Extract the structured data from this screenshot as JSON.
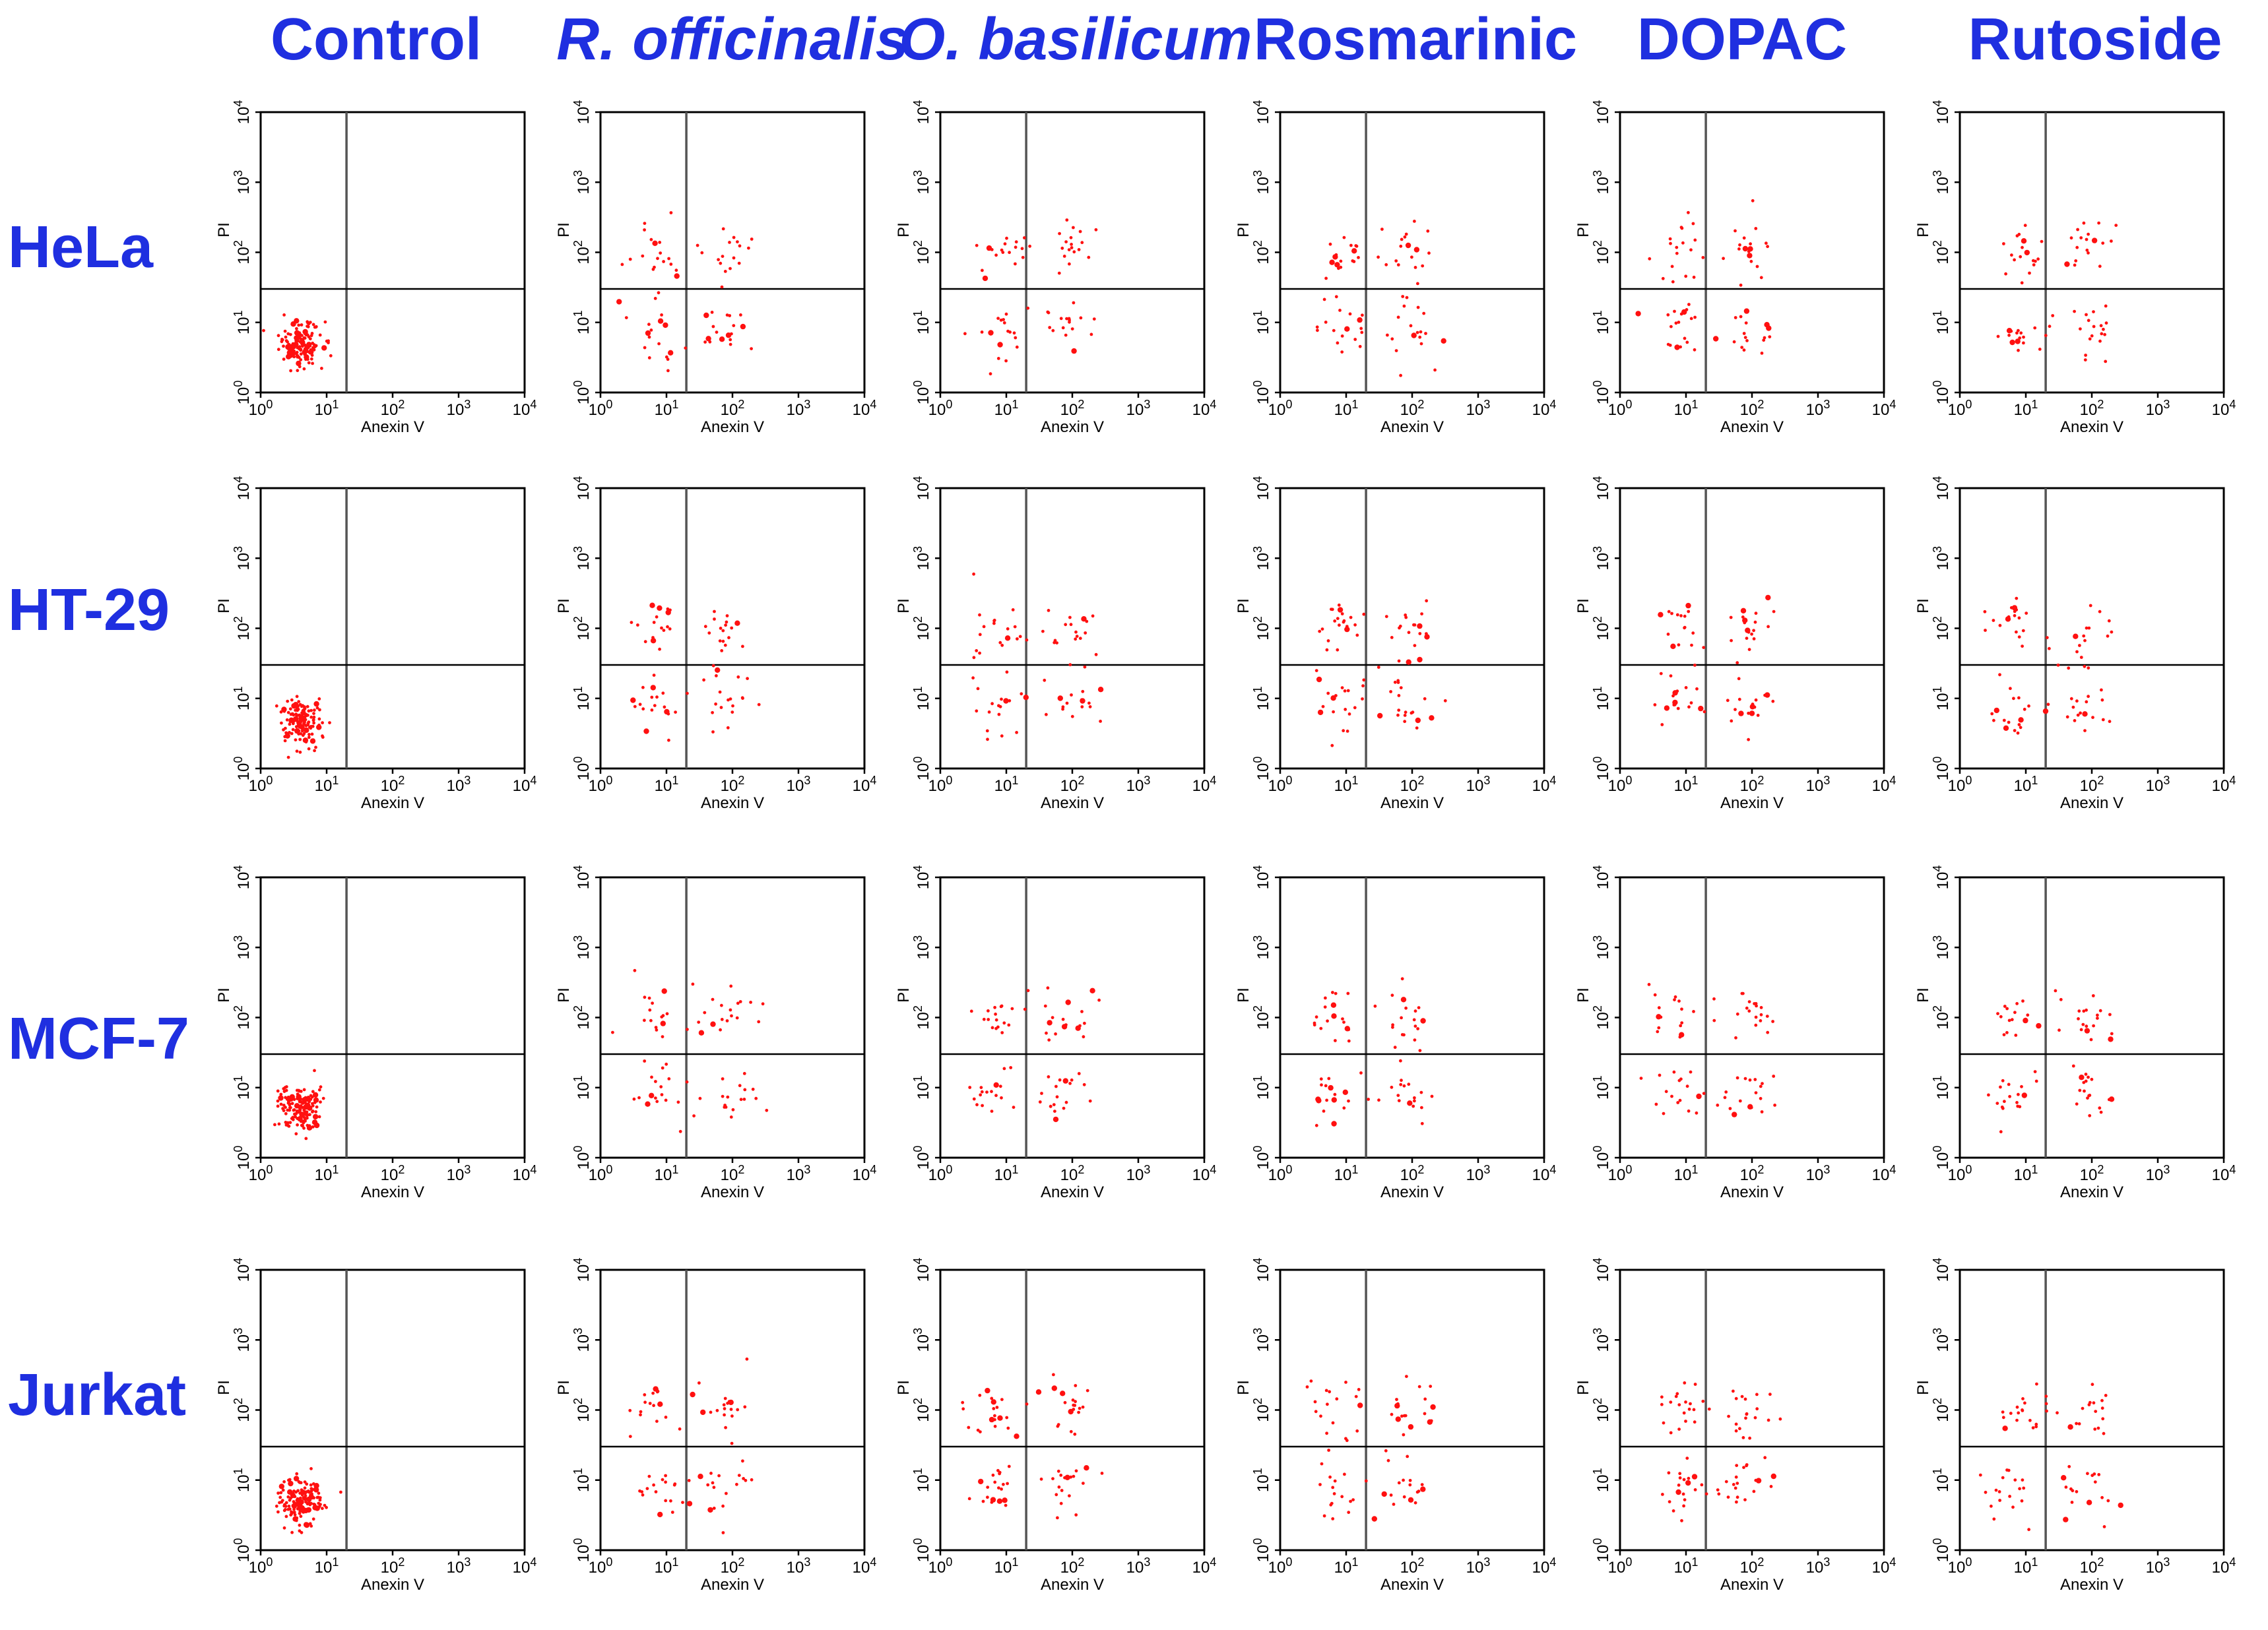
{
  "chart_data": {
    "type": "scatter",
    "description_title": "",
    "column_labels": [
      {
        "text": "Control",
        "italic": false
      },
      {
        "text": "R. officinalis",
        "italic": true
      },
      {
        "text": "O. basilicum",
        "italic": true
      },
      {
        "text": "Rosmarinic",
        "italic": false
      },
      {
        "text": "DOPAC",
        "italic": false
      },
      {
        "text": "Rutoside",
        "italic": false
      }
    ],
    "row_labels": [
      "HeLa",
      "HT-29",
      "MCF-7",
      "Jurkat"
    ],
    "xlabel": "Anexin V",
    "ylabel": "PI",
    "x_scale": "log",
    "y_scale": "log",
    "xlim": [
      1,
      10000
    ],
    "ylim": [
      1,
      10000
    ],
    "tick_values": [
      1,
      10,
      100,
      1000,
      10000
    ],
    "tick_base": "10",
    "tick_exponents": [
      "0",
      "1",
      "2",
      "3",
      "4"
    ],
    "quadrant_gate": {
      "x": 20,
      "y": 30
    },
    "point_color": "#ff1010",
    "label_color": "#1f2fe0",
    "panels": [
      {
        "row": "HeLa",
        "treatment": "Control",
        "clusters": [
          {
            "x": 4,
            "y": 5,
            "sx": 0.16,
            "sy": 0.16,
            "n": 150
          }
        ]
      },
      {
        "row": "HeLa",
        "treatment": "R. officinalis",
        "clusters": [
          {
            "x": 7,
            "y": 7,
            "sx": 0.22,
            "sy": 0.22,
            "n": 18
          },
          {
            "x": 7,
            "y": 90,
            "sx": 0.22,
            "sy": 0.22,
            "n": 18
          },
          {
            "x": 80,
            "y": 8,
            "sx": 0.22,
            "sy": 0.22,
            "n": 18
          },
          {
            "x": 80,
            "y": 100,
            "sx": 0.22,
            "sy": 0.22,
            "n": 18
          }
        ]
      },
      {
        "row": "HeLa",
        "treatment": "O. basilicum",
        "clusters": [
          {
            "x": 7,
            "y": 7,
            "sx": 0.22,
            "sy": 0.22,
            "n": 18
          },
          {
            "x": 7,
            "y": 100,
            "sx": 0.22,
            "sy": 0.22,
            "n": 18
          },
          {
            "x": 80,
            "y": 8,
            "sx": 0.22,
            "sy": 0.22,
            "n": 18
          },
          {
            "x": 100,
            "y": 110,
            "sx": 0.22,
            "sy": 0.22,
            "n": 18
          }
        ]
      },
      {
        "row": "HeLa",
        "treatment": "Rosmarinic",
        "clusters": [
          {
            "x": 8,
            "y": 8,
            "sx": 0.22,
            "sy": 0.22,
            "n": 18
          },
          {
            "x": 8,
            "y": 90,
            "sx": 0.22,
            "sy": 0.22,
            "n": 18
          },
          {
            "x": 90,
            "y": 8,
            "sx": 0.22,
            "sy": 0.22,
            "n": 18
          },
          {
            "x": 90,
            "y": 110,
            "sx": 0.22,
            "sy": 0.22,
            "n": 18
          }
        ]
      },
      {
        "row": "HeLa",
        "treatment": "DOPAC",
        "clusters": [
          {
            "x": 8,
            "y": 8,
            "sx": 0.22,
            "sy": 0.22,
            "n": 18
          },
          {
            "x": 8,
            "y": 110,
            "sx": 0.22,
            "sy": 0.22,
            "n": 18
          },
          {
            "x": 80,
            "y": 8,
            "sx": 0.22,
            "sy": 0.22,
            "n": 18
          },
          {
            "x": 90,
            "y": 110,
            "sx": 0.22,
            "sy": 0.22,
            "n": 18
          }
        ]
      },
      {
        "row": "HeLa",
        "treatment": "Rutoside",
        "clusters": [
          {
            "x": 7,
            "y": 7,
            "sx": 0.22,
            "sy": 0.22,
            "n": 18
          },
          {
            "x": 8,
            "y": 90,
            "sx": 0.22,
            "sy": 0.22,
            "n": 18
          },
          {
            "x": 90,
            "y": 8,
            "sx": 0.22,
            "sy": 0.22,
            "n": 18
          },
          {
            "x": 100,
            "y": 110,
            "sx": 0.22,
            "sy": 0.22,
            "n": 18
          }
        ]
      },
      {
        "row": "HT-29",
        "treatment": "Control",
        "clusters": [
          {
            "x": 4,
            "y": 5,
            "sx": 0.16,
            "sy": 0.16,
            "n": 150
          }
        ]
      },
      {
        "row": "HT-29",
        "treatment": "R. officinalis",
        "clusters": [
          {
            "x": 7,
            "y": 7,
            "sx": 0.22,
            "sy": 0.22,
            "n": 18
          },
          {
            "x": 7,
            "y": 110,
            "sx": 0.22,
            "sy": 0.22,
            "n": 18
          },
          {
            "x": 80,
            "y": 8,
            "sx": 0.22,
            "sy": 0.22,
            "n": 18
          },
          {
            "x": 90,
            "y": 100,
            "sx": 0.22,
            "sy": 0.22,
            "n": 18
          }
        ]
      },
      {
        "row": "HT-29",
        "treatment": "O. basilicum",
        "clusters": [
          {
            "x": 7,
            "y": 8,
            "sx": 0.22,
            "sy": 0.22,
            "n": 18
          },
          {
            "x": 7,
            "y": 100,
            "sx": 0.22,
            "sy": 0.22,
            "n": 18
          },
          {
            "x": 90,
            "y": 8,
            "sx": 0.22,
            "sy": 0.22,
            "n": 18
          },
          {
            "x": 100,
            "y": 100,
            "sx": 0.22,
            "sy": 0.22,
            "n": 18
          }
        ]
      },
      {
        "row": "HT-29",
        "treatment": "Rosmarinic",
        "clusters": [
          {
            "x": 8,
            "y": 8,
            "sx": 0.22,
            "sy": 0.22,
            "n": 20
          },
          {
            "x": 8,
            "y": 100,
            "sx": 0.22,
            "sy": 0.22,
            "n": 20
          },
          {
            "x": 90,
            "y": 8,
            "sx": 0.22,
            "sy": 0.22,
            "n": 20
          },
          {
            "x": 100,
            "y": 100,
            "sx": 0.22,
            "sy": 0.22,
            "n": 20
          }
        ]
      },
      {
        "row": "HT-29",
        "treatment": "DOPAC",
        "clusters": [
          {
            "x": 8,
            "y": 8,
            "sx": 0.22,
            "sy": 0.22,
            "n": 18
          },
          {
            "x": 8,
            "y": 100,
            "sx": 0.22,
            "sy": 0.22,
            "n": 18
          },
          {
            "x": 80,
            "y": 8,
            "sx": 0.22,
            "sy": 0.22,
            "n": 18
          },
          {
            "x": 100,
            "y": 100,
            "sx": 0.22,
            "sy": 0.22,
            "n": 18
          }
        ]
      },
      {
        "row": "HT-29",
        "treatment": "Rutoside",
        "clusters": [
          {
            "x": 7,
            "y": 7,
            "sx": 0.22,
            "sy": 0.22,
            "n": 18
          },
          {
            "x": 8,
            "y": 110,
            "sx": 0.22,
            "sy": 0.22,
            "n": 18
          },
          {
            "x": 80,
            "y": 8,
            "sx": 0.22,
            "sy": 0.22,
            "n": 18
          },
          {
            "x": 80,
            "y": 100,
            "sx": 0.22,
            "sy": 0.22,
            "n": 18
          }
        ]
      },
      {
        "row": "MCF-7",
        "treatment": "Control",
        "clusters": [
          {
            "x": 4,
            "y": 5,
            "sx": 0.16,
            "sy": 0.16,
            "n": 150
          }
        ]
      },
      {
        "row": "MCF-7",
        "treatment": "R. officinalis",
        "clusters": [
          {
            "x": 7,
            "y": 7,
            "sx": 0.22,
            "sy": 0.22,
            "n": 18
          },
          {
            "x": 7,
            "y": 110,
            "sx": 0.22,
            "sy": 0.22,
            "n": 18
          },
          {
            "x": 80,
            "y": 8,
            "sx": 0.22,
            "sy": 0.22,
            "n": 18
          },
          {
            "x": 90,
            "y": 100,
            "sx": 0.22,
            "sy": 0.22,
            "n": 18
          }
        ]
      },
      {
        "row": "MCF-7",
        "treatment": "O. basilicum",
        "clusters": [
          {
            "x": 7,
            "y": 8,
            "sx": 0.22,
            "sy": 0.22,
            "n": 18
          },
          {
            "x": 7,
            "y": 100,
            "sx": 0.22,
            "sy": 0.22,
            "n": 18
          },
          {
            "x": 60,
            "y": 8,
            "sx": 0.22,
            "sy": 0.22,
            "n": 18
          },
          {
            "x": 90,
            "y": 100,
            "sx": 0.22,
            "sy": 0.22,
            "n": 18
          }
        ]
      },
      {
        "row": "MCF-7",
        "treatment": "Rosmarinic",
        "clusters": [
          {
            "x": 8,
            "y": 8,
            "sx": 0.22,
            "sy": 0.22,
            "n": 18
          },
          {
            "x": 8,
            "y": 90,
            "sx": 0.22,
            "sy": 0.22,
            "n": 18
          },
          {
            "x": 80,
            "y": 8,
            "sx": 0.22,
            "sy": 0.22,
            "n": 18
          },
          {
            "x": 90,
            "y": 100,
            "sx": 0.22,
            "sy": 0.22,
            "n": 18
          }
        ]
      },
      {
        "row": "MCF-7",
        "treatment": "DOPAC",
        "clusters": [
          {
            "x": 8,
            "y": 8,
            "sx": 0.22,
            "sy": 0.22,
            "n": 18
          },
          {
            "x": 8,
            "y": 100,
            "sx": 0.22,
            "sy": 0.22,
            "n": 18
          },
          {
            "x": 90,
            "y": 8,
            "sx": 0.22,
            "sy": 0.22,
            "n": 18
          },
          {
            "x": 100,
            "y": 100,
            "sx": 0.22,
            "sy": 0.22,
            "n": 18
          }
        ]
      },
      {
        "row": "MCF-7",
        "treatment": "Rutoside",
        "clusters": [
          {
            "x": 7,
            "y": 7,
            "sx": 0.22,
            "sy": 0.22,
            "n": 18
          },
          {
            "x": 8,
            "y": 100,
            "sx": 0.22,
            "sy": 0.22,
            "n": 18
          },
          {
            "x": 90,
            "y": 8,
            "sx": 0.22,
            "sy": 0.22,
            "n": 18
          },
          {
            "x": 90,
            "y": 100,
            "sx": 0.22,
            "sy": 0.22,
            "n": 18
          }
        ]
      },
      {
        "row": "Jurkat",
        "treatment": "Control",
        "clusters": [
          {
            "x": 4,
            "y": 5,
            "sx": 0.16,
            "sy": 0.16,
            "n": 160
          }
        ]
      },
      {
        "row": "Jurkat",
        "treatment": "R. officinalis",
        "clusters": [
          {
            "x": 7,
            "y": 7,
            "sx": 0.22,
            "sy": 0.22,
            "n": 18
          },
          {
            "x": 7,
            "y": 100,
            "sx": 0.22,
            "sy": 0.22,
            "n": 18
          },
          {
            "x": 80,
            "y": 8,
            "sx": 0.22,
            "sy": 0.22,
            "n": 18
          },
          {
            "x": 90,
            "y": 100,
            "sx": 0.22,
            "sy": 0.22,
            "n": 18
          }
        ]
      },
      {
        "row": "Jurkat",
        "treatment": "O. basilicum",
        "clusters": [
          {
            "x": 7,
            "y": 8,
            "sx": 0.22,
            "sy": 0.22,
            "n": 20
          },
          {
            "x": 7,
            "y": 110,
            "sx": 0.22,
            "sy": 0.22,
            "n": 20
          },
          {
            "x": 80,
            "y": 8,
            "sx": 0.22,
            "sy": 0.22,
            "n": 20
          },
          {
            "x": 80,
            "y": 100,
            "sx": 0.22,
            "sy": 0.22,
            "n": 20
          }
        ]
      },
      {
        "row": "Jurkat",
        "treatment": "Rosmarinic",
        "clusters": [
          {
            "x": 8,
            "y": 8,
            "sx": 0.22,
            "sy": 0.22,
            "n": 18
          },
          {
            "x": 8,
            "y": 100,
            "sx": 0.22,
            "sy": 0.22,
            "n": 18
          },
          {
            "x": 80,
            "y": 8,
            "sx": 0.22,
            "sy": 0.22,
            "n": 18
          },
          {
            "x": 90,
            "y": 100,
            "sx": 0.22,
            "sy": 0.22,
            "n": 18
          }
        ]
      },
      {
        "row": "Jurkat",
        "treatment": "DOPAC",
        "clusters": [
          {
            "x": 8,
            "y": 8,
            "sx": 0.22,
            "sy": 0.22,
            "n": 20
          },
          {
            "x": 8,
            "y": 100,
            "sx": 0.22,
            "sy": 0.22,
            "n": 20
          },
          {
            "x": 80,
            "y": 8,
            "sx": 0.22,
            "sy": 0.22,
            "n": 20
          },
          {
            "x": 90,
            "y": 100,
            "sx": 0.22,
            "sy": 0.22,
            "n": 20
          }
        ]
      },
      {
        "row": "Jurkat",
        "treatment": "Rutoside",
        "clusters": [
          {
            "x": 7,
            "y": 7,
            "sx": 0.22,
            "sy": 0.22,
            "n": 18
          },
          {
            "x": 7,
            "y": 100,
            "sx": 0.22,
            "sy": 0.22,
            "n": 18
          },
          {
            "x": 80,
            "y": 8,
            "sx": 0.22,
            "sy": 0.22,
            "n": 18
          },
          {
            "x": 90,
            "y": 100,
            "sx": 0.22,
            "sy": 0.22,
            "n": 18
          }
        ]
      }
    ]
  }
}
